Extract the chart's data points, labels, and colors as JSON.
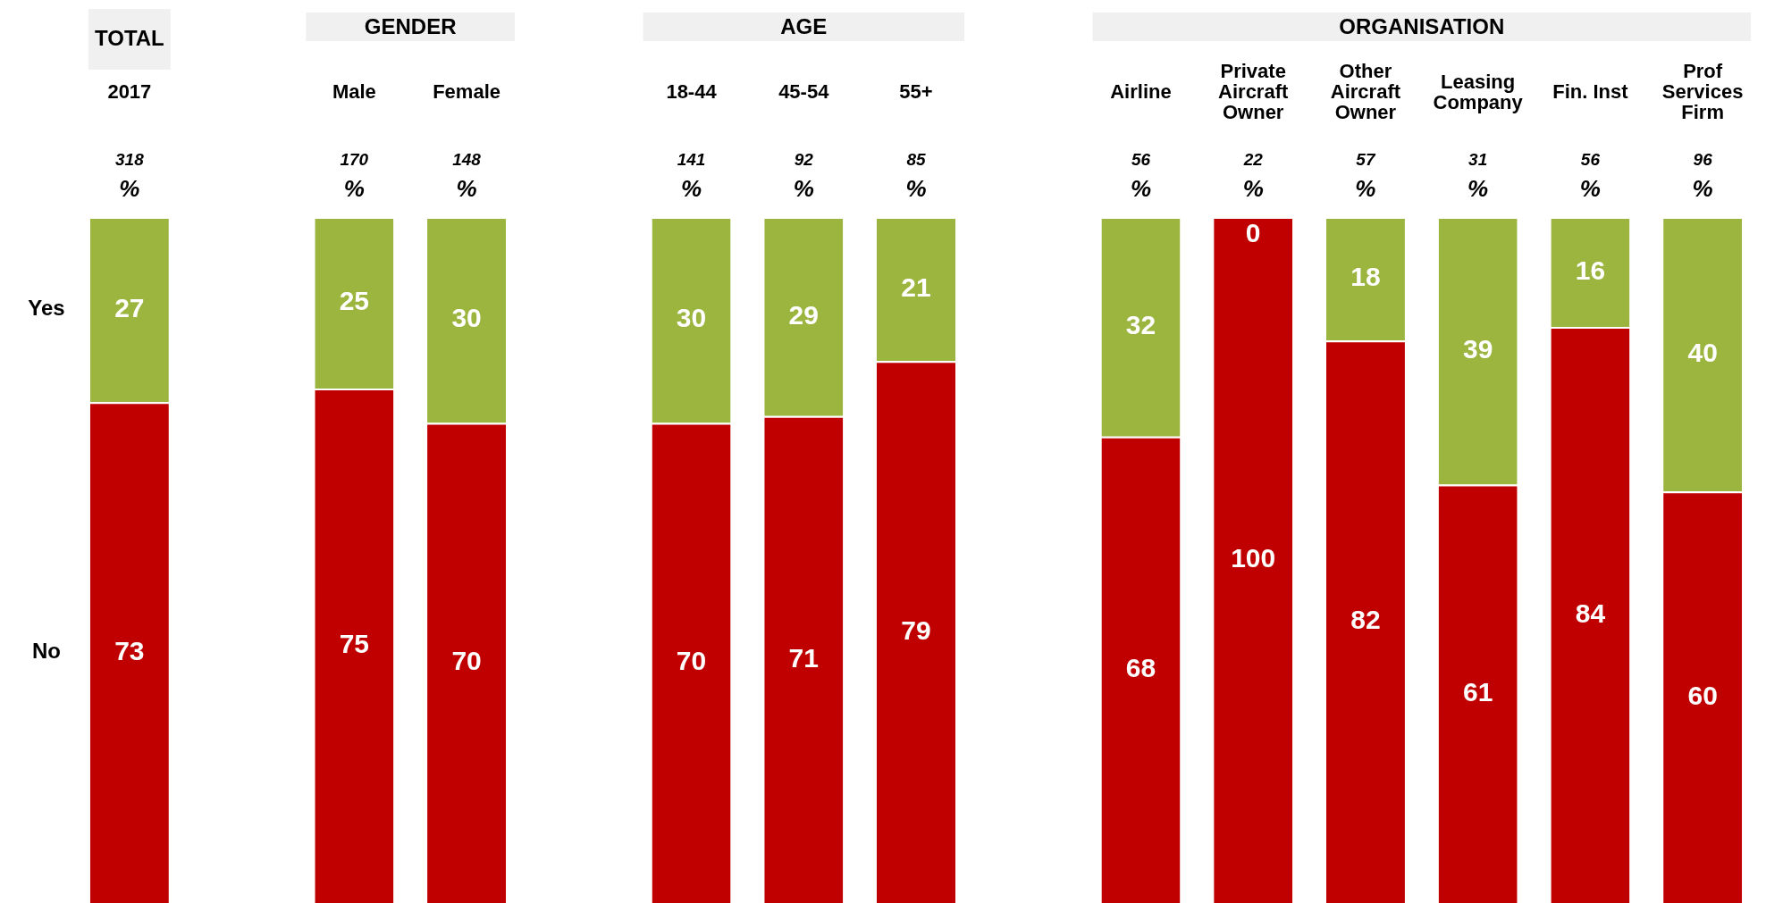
{
  "chart_data": {
    "type": "bar",
    "stacked": true,
    "data_labels": true,
    "categories": [
      "2017",
      "Male",
      "Female",
      "18-44",
      "45-54",
      "55+",
      "Airline",
      "Private Aircraft Owner",
      "Other Aircraft Owner",
      "Leasing Company",
      "Fin. Inst",
      "Prof Services Firm"
    ],
    "series": [
      {
        "name": "No",
        "color": "#c00000",
        "values": [
          73,
          75,
          70,
          70,
          71,
          79,
          68,
          100,
          82,
          61,
          84,
          60
        ]
      },
      {
        "name": "Yes",
        "color": "#9bb53f",
        "values": [
          27,
          25,
          30,
          30,
          29,
          21,
          32,
          0,
          18,
          39,
          16,
          40
        ]
      }
    ],
    "annotations": [
      "TOTAL",
      "GENDER",
      "AGE",
      "ORGANISATION",
      "318\n%",
      "170\n%",
      "148\n%",
      "141\n%",
      "92\n%",
      "85\n%",
      "56\n%",
      "22\n%",
      "57\n%",
      "31\n%",
      "56\n%",
      "96\n%"
    ]
  }
}
